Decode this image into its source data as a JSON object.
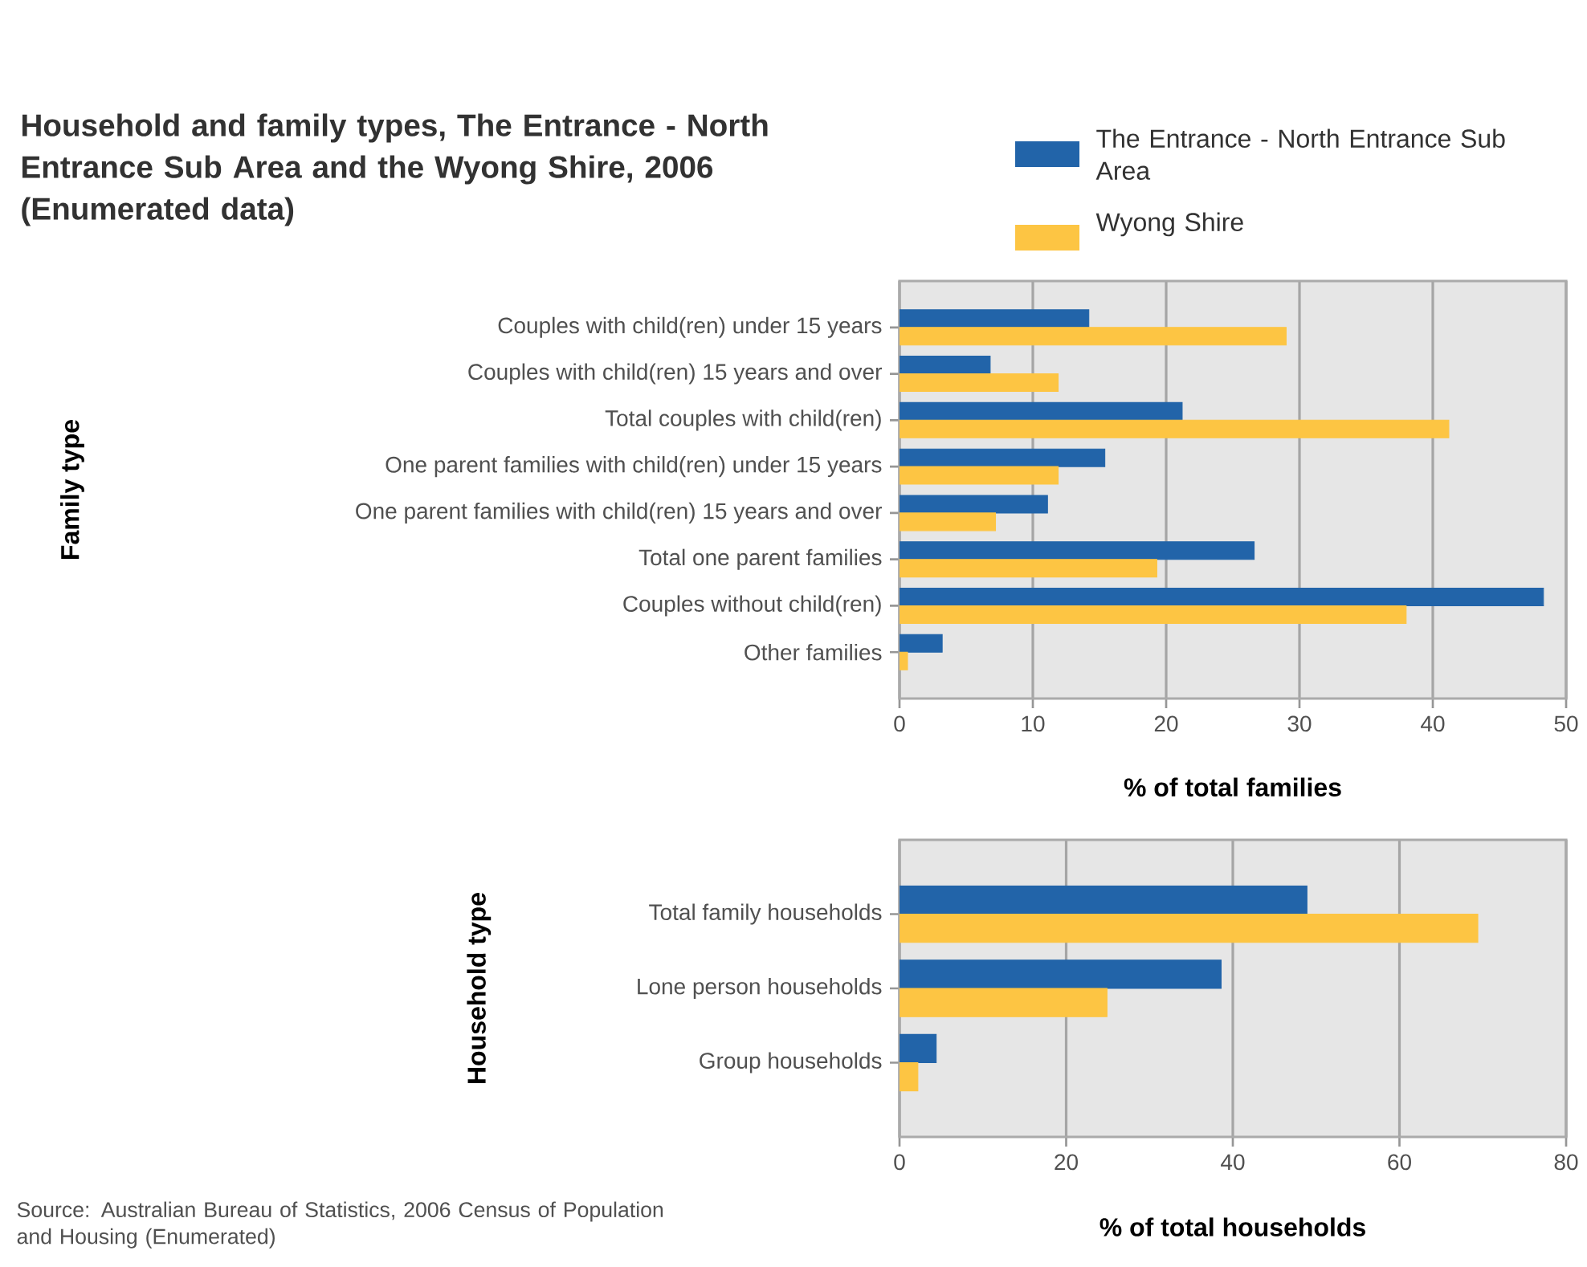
{
  "chart_data": [
    {
      "type": "bar",
      "orientation": "horizontal",
      "title": "Household and family types, The Entrance - North Entrance Sub Area and the Wyong Shire, 2006 (Enumerated data)",
      "ylabel": "Family type",
      "xlabel": "% of total families",
      "categories": [
        "Couples with child(ren) under 15 years",
        "Couples with child(ren) 15 years and over",
        "Total couples with child(ren)",
        "One parent families with child(ren) under 15 years",
        "One parent families with child(ren) 15 years and over",
        "Total one parent families",
        "Couples without child(ren)",
        "Other families"
      ],
      "series": [
        {
          "name": "The Entrance - North Entrance Sub Area",
          "color": "#2264a9",
          "values": [
            14.2,
            6.8,
            21.2,
            15.4,
            11.1,
            26.6,
            48.3,
            3.2
          ]
        },
        {
          "name": "Wyong Shire",
          "color": "#fdc543",
          "values": [
            29.0,
            11.9,
            41.2,
            11.9,
            7.2,
            19.3,
            38.0,
            0.6
          ]
        }
      ],
      "xlim": [
        0,
        50
      ],
      "xticks": [
        0,
        10,
        20,
        30,
        40,
        50
      ],
      "grid": "x",
      "legend": "top right"
    },
    {
      "type": "bar",
      "orientation": "horizontal",
      "ylabel": "Household type",
      "xlabel": "% of total households",
      "categories": [
        "Total family households",
        "Lone person households",
        "Group households"
      ],
      "series": [
        {
          "color": "#2264a9",
          "values": [
            48.9,
            38.6,
            4.4
          ]
        },
        {
          "color": "#fdc543",
          "values": [
            69.4,
            24.9,
            2.2
          ]
        }
      ],
      "xlim": [
        0,
        80
      ],
      "xticks": [
        0,
        20,
        40,
        60,
        80
      ],
      "grid": "x",
      "annotations": [
        "Source: Australian Bureau of Statistics, 2006 Census of Population and Housing (Enumerated)"
      ]
    }
  ]
}
